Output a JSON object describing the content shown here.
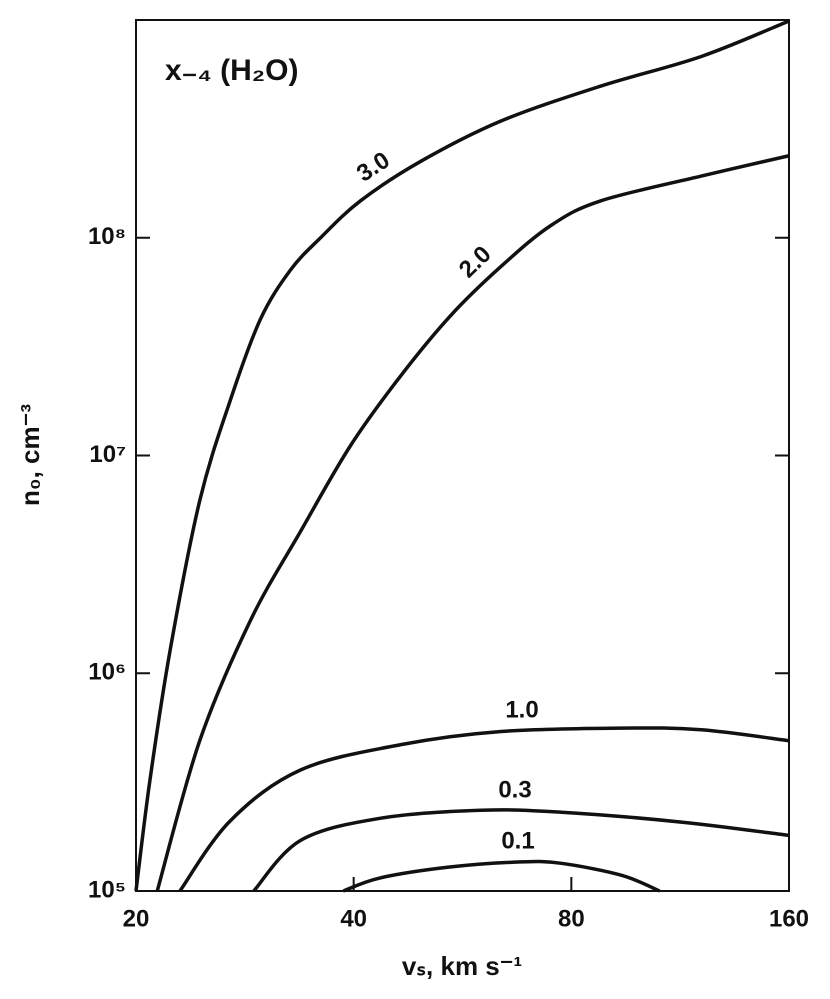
{
  "chart_data": {
    "type": "line",
    "annotation": "x₋₄ (H₂O)",
    "xlabel": "vₛ, km s⁻¹",
    "ylabel": "n₀, cm⁻³",
    "xscale": "log",
    "yscale": "log",
    "xlim": [
      20,
      160
    ],
    "ylim": [
      100000,
      1000000000
    ],
    "xticks": [
      20,
      40,
      80,
      160
    ],
    "yticks": [
      {
        "value": 100000,
        "label": "10⁵"
      },
      {
        "value": 1000000,
        "label": "10⁶"
      },
      {
        "value": 10000000,
        "label": "10⁷"
      },
      {
        "value": 100000000,
        "label": "10⁸"
      }
    ],
    "series": [
      {
        "name": "3.0",
        "color": "#111111",
        "x": [
          20,
          20.9,
          22.3,
          24.5,
          27.0,
          29.7,
          32.7,
          36.0,
          40.9,
          49.6,
          64.0,
          88,
          121,
          160
        ],
        "values": [
          100000,
          320000,
          1280000,
          6200000,
          17900000,
          42000000,
          71000000,
          100000000,
          148000000,
          225000000,
          344000000,
          498000000,
          680000000,
          990000000
        ]
      },
      {
        "name": "2.0",
        "color": "#111111",
        "x": [
          21.4,
          24.5,
          28.8,
          33.8,
          39.6,
          46.5,
          54.5,
          64.0,
          75.0,
          88,
          121,
          160
        ],
        "values": [
          100000,
          490000,
          1750000,
          4500000,
          11100000,
          23300000,
          44000000,
          74000000,
          114000000,
          148000000,
          192000000,
          238000000
        ]
      },
      {
        "name": "1.0",
        "color": "#111111",
        "x": [
          23.0,
          27.0,
          33.8,
          46.5,
          64.0,
          93.9,
          121,
          160
        ],
        "values": [
          100000,
          210000,
          360000,
          470000,
          540000,
          560000,
          550000,
          490000
        ]
      },
      {
        "name": "0.3",
        "color": "#111111",
        "x": [
          29.1,
          33.8,
          43.6,
          60,
          77.5,
          114,
          160
        ],
        "values": [
          100000,
          171000,
          216000,
          235000,
          230000,
          207000,
          180000
        ]
      },
      {
        "name": "0.1",
        "color": "#111111",
        "x": [
          38.7,
          43.6,
          54.5,
          68.2,
          77.5,
          93.9,
          106
        ],
        "values": [
          100000,
          115000,
          129000,
          136000,
          134000,
          118000,
          100000
        ]
      }
    ]
  }
}
